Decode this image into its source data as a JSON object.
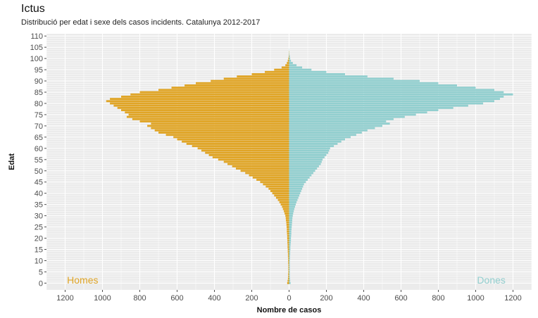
{
  "chart_data": {
    "type": "bar",
    "orientation": "horizontal-pyramid",
    "title": "Ictus",
    "subtitle": "Distribució per edat i sexe dels casos incidents. Catalunya 2012-2017",
    "xlabel": "Nombre de casos",
    "ylabel": "Edat",
    "xlim": [
      -1300,
      1300
    ],
    "ylim": [
      -3,
      111
    ],
    "x_ticks": [
      -1200,
      -1000,
      -800,
      -600,
      -400,
      -200,
      0,
      200,
      400,
      600,
      800,
      1000,
      1200
    ],
    "x_tick_labels": [
      "1200",
      "1000",
      "800",
      "600",
      "400",
      "200",
      "0",
      "200",
      "400",
      "600",
      "800",
      "1000",
      "1200"
    ],
    "y_ticks": [
      0,
      5,
      10,
      15,
      20,
      25,
      30,
      35,
      40,
      45,
      50,
      55,
      60,
      65,
      70,
      75,
      80,
      85,
      90,
      95,
      100,
      105,
      110
    ],
    "y_tick_labels": [
      "0",
      "5",
      "10",
      "15",
      "20",
      "25",
      "30",
      "35",
      "40",
      "45",
      "50",
      "55",
      "60",
      "65",
      "70",
      "75",
      "80",
      "85",
      "90",
      "95",
      "100",
      "105",
      "110"
    ],
    "grid": true,
    "annotations": [
      {
        "text": "Homes",
        "position": "bottom-left",
        "color": "#E0A526"
      },
      {
        "text": "Dones",
        "position": "bottom-right",
        "color": "#92CFCF"
      }
    ],
    "series": [
      {
        "name": "Homes",
        "color": "#E0A526",
        "ages": [
          0,
          1,
          2,
          3,
          4,
          5,
          6,
          7,
          8,
          9,
          10,
          11,
          12,
          13,
          14,
          15,
          16,
          17,
          18,
          19,
          20,
          21,
          22,
          23,
          24,
          25,
          26,
          27,
          28,
          29,
          30,
          31,
          32,
          33,
          34,
          35,
          36,
          37,
          38,
          39,
          40,
          41,
          42,
          43,
          44,
          45,
          46,
          47,
          48,
          49,
          50,
          51,
          52,
          53,
          54,
          55,
          56,
          57,
          58,
          59,
          60,
          61,
          62,
          63,
          64,
          65,
          66,
          67,
          68,
          69,
          70,
          71,
          72,
          73,
          74,
          75,
          76,
          77,
          78,
          79,
          80,
          81,
          82,
          83,
          84,
          85,
          86,
          87,
          88,
          89,
          90,
          91,
          92,
          93,
          94,
          95,
          96,
          97,
          98,
          99,
          100,
          101,
          102,
          103,
          104
        ],
        "values": [
          10,
          8,
          6,
          5,
          5,
          4,
          4,
          4,
          4,
          5,
          5,
          5,
          6,
          6,
          7,
          7,
          8,
          8,
          9,
          9,
          10,
          10,
          11,
          12,
          12,
          13,
          14,
          15,
          17,
          18,
          20,
          24,
          28,
          33,
          38,
          45,
          52,
          60,
          70,
          80,
          90,
          100,
          110,
          125,
          140,
          155,
          175,
          195,
          215,
          235,
          260,
          285,
          305,
          330,
          350,
          380,
          410,
          430,
          450,
          470,
          490,
          520,
          550,
          575,
          600,
          620,
          660,
          700,
          720,
          740,
          760,
          740,
          800,
          840,
          870,
          860,
          880,
          900,
          920,
          940,
          960,
          980,
          960,
          900,
          850,
          800,
          700,
          630,
          560,
          500,
          420,
          350,
          280,
          200,
          130,
          80,
          40,
          20,
          12,
          7,
          4,
          2,
          1,
          1,
          0
        ]
      },
      {
        "name": "Dones",
        "color": "#92CFCF",
        "ages": [
          0,
          1,
          2,
          3,
          4,
          5,
          6,
          7,
          8,
          9,
          10,
          11,
          12,
          13,
          14,
          15,
          16,
          17,
          18,
          19,
          20,
          21,
          22,
          23,
          24,
          25,
          26,
          27,
          28,
          29,
          30,
          31,
          32,
          33,
          34,
          35,
          36,
          37,
          38,
          39,
          40,
          41,
          42,
          43,
          44,
          45,
          46,
          47,
          48,
          49,
          50,
          51,
          52,
          53,
          54,
          55,
          56,
          57,
          58,
          59,
          60,
          61,
          62,
          63,
          64,
          65,
          66,
          67,
          68,
          69,
          70,
          71,
          72,
          73,
          74,
          75,
          76,
          77,
          78,
          79,
          80,
          81,
          82,
          83,
          84,
          85,
          86,
          87,
          88,
          89,
          90,
          91,
          92,
          93,
          94,
          95,
          96,
          97,
          98,
          99,
          100,
          101,
          102,
          103,
          104
        ],
        "values": [
          8,
          6,
          5,
          4,
          4,
          4,
          4,
          4,
          4,
          4,
          4,
          5,
          5,
          6,
          6,
          7,
          7,
          8,
          9,
          10,
          10,
          11,
          12,
          12,
          13,
          14,
          15,
          16,
          17,
          18,
          20,
          22,
          25,
          28,
          32,
          36,
          40,
          45,
          50,
          55,
          60,
          65,
          70,
          75,
          80,
          90,
          100,
          110,
          120,
          130,
          140,
          150,
          160,
          170,
          175,
          180,
          190,
          200,
          210,
          215,
          220,
          240,
          260,
          280,
          300,
          330,
          360,
          390,
          420,
          460,
          500,
          540,
          520,
          560,
          620,
          680,
          740,
          800,
          880,
          960,
          1040,
          1100,
          1130,
          1150,
          1200,
          1150,
          1100,
          1000,
          900,
          800,
          700,
          560,
          420,
          300,
          200,
          120,
          70,
          40,
          20,
          10,
          6,
          4,
          2,
          1,
          1
        ]
      }
    ]
  }
}
